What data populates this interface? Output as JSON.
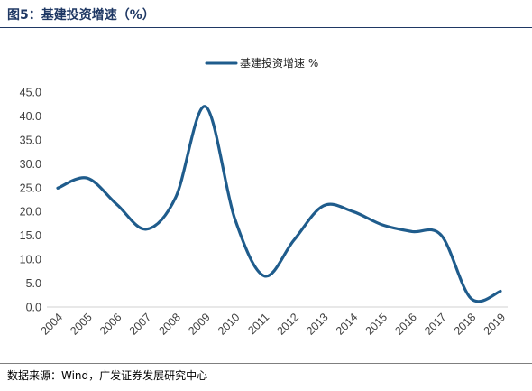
{
  "figure": {
    "title": "图5：基建投资增速（%）",
    "source": "数据来源：Wind，广发证券发展研究中心"
  },
  "chart_data": {
    "type": "line",
    "title": "",
    "xlabel": "",
    "ylabel": "",
    "legend_position": "top-center",
    "grid": false,
    "x": [
      "2004",
      "2005",
      "2006",
      "2007",
      "2008",
      "2009",
      "2010",
      "2011",
      "2012",
      "2013",
      "2014",
      "2015",
      "2016",
      "2017",
      "2018",
      "2019"
    ],
    "series": [
      {
        "name": "基建投资增速 %",
        "color": "#1f5c8c",
        "values": [
          24.9,
          27.0,
          21.5,
          16.3,
          23.0,
          42.0,
          18.5,
          6.5,
          14.0,
          21.2,
          20.0,
          17.2,
          15.8,
          15.0,
          1.8,
          3.3
        ]
      }
    ],
    "ylim": [
      0,
      45
    ],
    "yticks": [
      "0.0",
      "5.0",
      "10.0",
      "15.0",
      "20.0",
      "25.0",
      "30.0",
      "35.0",
      "40.0",
      "45.0"
    ]
  }
}
